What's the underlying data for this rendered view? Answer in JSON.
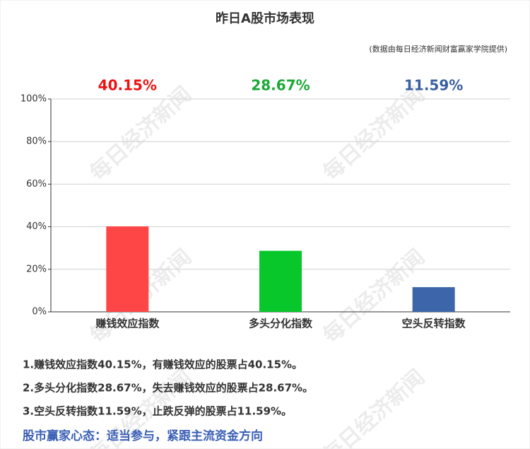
{
  "chart_data": {
    "type": "bar",
    "title": "昨日A股市场表现",
    "subtitle": "(数据由每日经济新闻财富赢家学院提供)",
    "watermark": "每日经济新闻",
    "categories": [
      "赚钱效应指数",
      "多头分化指数",
      "空头反转指数"
    ],
    "values": [
      40.15,
      28.67,
      11.59
    ],
    "value_labels": [
      "40.15%",
      "28.67%",
      "11.59%"
    ],
    "colors": [
      "#ff4646",
      "#08c72b",
      "#3d65a9"
    ],
    "value_label_colors": [
      "#ee1111",
      "#1aa836",
      "#3a5fa0"
    ],
    "ylim": [
      0,
      100
    ],
    "yticks": [
      {
        "value": 0,
        "label": "0%"
      },
      {
        "value": 20,
        "label": "20%"
      },
      {
        "value": 40,
        "label": "40%"
      },
      {
        "value": 60,
        "label": "60%"
      },
      {
        "value": 80,
        "label": "80%"
      },
      {
        "value": 100,
        "label": "100%"
      }
    ],
    "grid": true,
    "notes": [
      "1.赚钱效应指数40.15%，有赚钱效应的股票占40.15%。",
      "2.多头分化指数28.67%，失去赚钱效应的股票占28.67%。",
      "3.空头反转指数11.59%，止跌反弹的股票占11.59%。"
    ],
    "footer": "股市赢家心态：适当参与，紧跟主流资金方向"
  }
}
